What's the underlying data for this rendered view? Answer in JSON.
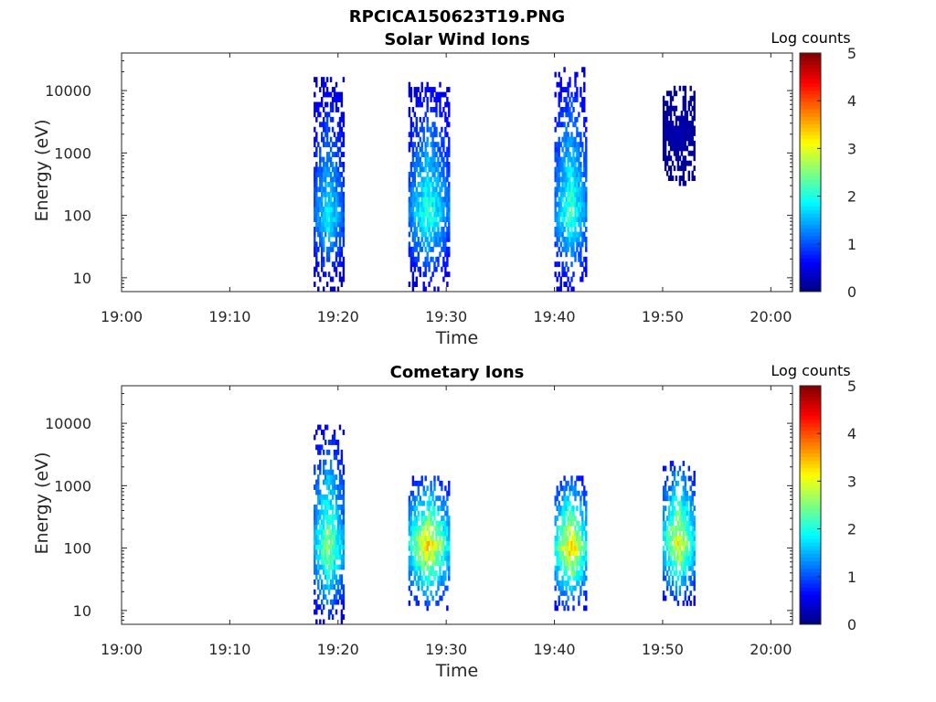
{
  "figure": {
    "title": "RPCICA150623T19.PNG"
  },
  "chart_data": [
    {
      "type": "heatmap",
      "title": "Solar Wind Ions",
      "xlabel": "Time",
      "ylabel": "Energy (eV)",
      "xlim": [
        "19:00",
        "20:02"
      ],
      "ylim": [
        6,
        40000
      ],
      "yscale": "log",
      "x_ticks": [
        "19:00",
        "19:10",
        "19:20",
        "19:30",
        "19:40",
        "19:50",
        "20:00"
      ],
      "y_ticks": [
        "10",
        "100",
        "1000",
        "10000"
      ],
      "colorbar": {
        "label": "Log counts",
        "range": [
          0,
          5
        ],
        "ticks": [
          "0",
          "1",
          "2",
          "3",
          "4",
          "5"
        ],
        "colormap": "jet"
      },
      "bursts": [
        {
          "t_start": "19:17:45",
          "t_end": "19:20:30",
          "e_min": 6,
          "e_max": 16000,
          "e_peak": 80,
          "max_log_counts": 2.2
        },
        {
          "t_start": "19:26:30",
          "t_end": "19:30:15",
          "e_min": 6,
          "e_max": 13000,
          "e_peak": 100,
          "max_log_counts": 2.5
        },
        {
          "t_start": "19:40:00",
          "t_end": "19:43:00",
          "e_min": 6,
          "e_max": 21000,
          "e_peak": 100,
          "max_log_counts": 2.6
        },
        {
          "t_start": "19:50:00",
          "t_end": "19:53:00",
          "e_min": 300,
          "e_max": 11000,
          "e_peak": 2000,
          "max_log_counts": 0.3
        }
      ]
    },
    {
      "type": "heatmap",
      "title": "Cometary Ions",
      "xlabel": "Time",
      "ylabel": "Energy (eV)",
      "xlim": [
        "19:00",
        "20:02"
      ],
      "ylim": [
        6,
        40000
      ],
      "yscale": "log",
      "x_ticks": [
        "19:00",
        "19:10",
        "19:20",
        "19:30",
        "19:40",
        "19:50",
        "20:00"
      ],
      "y_ticks": [
        "10",
        "100",
        "1000",
        "10000"
      ],
      "colorbar": {
        "label": "Log counts",
        "range": [
          0,
          5
        ],
        "ticks": [
          "0",
          "1",
          "2",
          "3",
          "4",
          "5"
        ],
        "colormap": "jet"
      },
      "bursts": [
        {
          "t_start": "19:17:45",
          "t_end": "19:20:30",
          "e_min": 6,
          "e_max": 8000,
          "e_peak": 90,
          "max_log_counts": 3.1
        },
        {
          "t_start": "19:26:30",
          "t_end": "19:30:15",
          "e_min": 10,
          "e_max": 1400,
          "e_peak": 100,
          "max_log_counts": 3.9
        },
        {
          "t_start": "19:40:00",
          "t_end": "19:43:00",
          "e_min": 10,
          "e_max": 1400,
          "e_peak": 90,
          "max_log_counts": 4.0
        },
        {
          "t_start": "19:50:00",
          "t_end": "19:53:00",
          "e_min": 12,
          "e_max": 2500,
          "e_peak": 110,
          "max_log_counts": 3.7
        }
      ]
    }
  ]
}
